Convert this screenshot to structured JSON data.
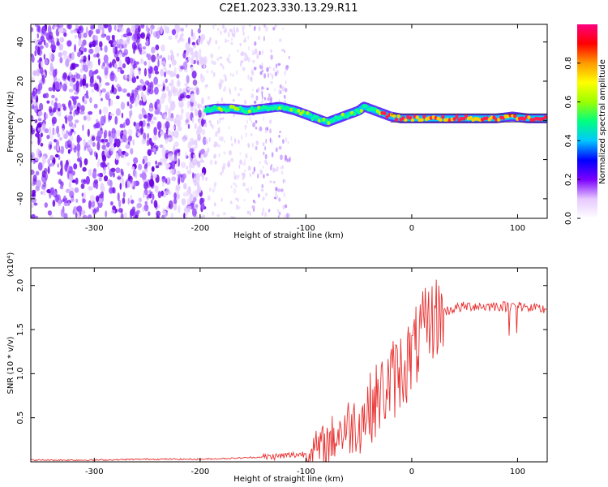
{
  "chart_data": [
    {
      "type": "heatmap",
      "title": "C2E1.2023.330.13.29.R11",
      "xlabel": "Height of straight line (km)",
      "ylabel": "Frequency (Hz)",
      "xlim": [
        -360,
        128
      ],
      "ylim": [
        -50,
        49
      ],
      "xticks": [
        -300,
        -200,
        -100,
        0,
        100
      ],
      "yticks": [
        -40,
        -20,
        0,
        20,
        40
      ],
      "colorbar": {
        "label": "Normalized spectral amplitude",
        "range": [
          0,
          1
        ],
        "ticks": [
          "0.0",
          "0.2",
          "0.4",
          "0.6",
          "0.8"
        ],
        "colors": [
          "#ffffff",
          "#e6c8ff",
          "#7b00ff",
          "#0000ff",
          "#00c8ff",
          "#00ff80",
          "#9bff00",
          "#ffff00",
          "#ff9a00",
          "#ff0000",
          "#ff0080"
        ]
      },
      "ridge": {
        "x": [
          -195,
          -185,
          -170,
          -155,
          -140,
          -125,
          -110,
          -100,
          -90,
          -80,
          -70,
          -60,
          -50,
          -45,
          -40,
          -30,
          -20,
          -10,
          0,
          20,
          40,
          60,
          80,
          95,
          110,
          128
        ],
        "y": [
          5,
          6,
          6,
          5,
          6,
          7,
          5,
          3,
          1,
          -1,
          1,
          3,
          5,
          7,
          6,
          4,
          2,
          1,
          1,
          1,
          1,
          1,
          1,
          2,
          1,
          1
        ]
      },
      "noise_region": {
        "x_range": [
          -360,
          -195
        ],
        "secondary_band": [
          -150,
          -115
        ],
        "freq_range": [
          -50,
          49
        ]
      }
    },
    {
      "type": "line",
      "xlabel": "Height of straight line (km)",
      "ylabel": "SNR (10 * v/v)",
      "y_scale_label": "(x10⁴)",
      "xlim": [
        -360,
        128
      ],
      "ylim": [
        0,
        2.2
      ],
      "xticks": [
        -300,
        -200,
        -100,
        0,
        100
      ],
      "yticks": [
        "0.5",
        "1.0",
        "1.5",
        "2.0"
      ],
      "color": "#e8302f",
      "series": [
        {
          "x": [
            -360,
            -300,
            -250,
            -200,
            -170,
            -150,
            -130,
            -120,
            -110,
            -100,
            -90,
            -80,
            -70,
            -60,
            -50,
            -40,
            -30,
            -20,
            -10,
            0,
            10,
            20,
            30,
            40,
            50,
            60,
            70,
            80,
            90,
            100,
            110,
            120,
            128
          ],
          "y": [
            0.02,
            0.02,
            0.03,
            0.03,
            0.04,
            0.05,
            0.06,
            0.07,
            0.08,
            0.09,
            0.13,
            0.2,
            0.32,
            0.4,
            0.45,
            0.6,
            0.75,
            0.9,
            1.05,
            1.2,
            1.45,
            1.62,
            1.7,
            1.74,
            1.76,
            1.77,
            1.76,
            1.77,
            1.76,
            1.78,
            1.74,
            1.73,
            1.73
          ]
        }
      ]
    }
  ]
}
